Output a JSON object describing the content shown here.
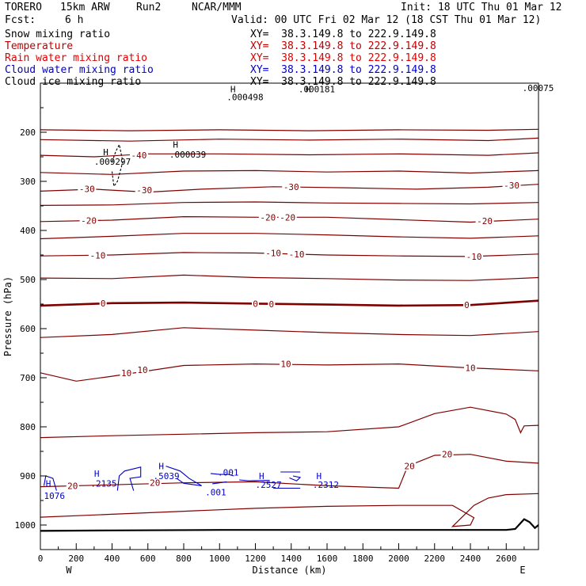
{
  "header": {
    "model": "TORERO",
    "resolution": "15km ARW",
    "run": "Run2",
    "center": "NCAR/MMM",
    "init": "Init: 18 UTC Thu 01 Mar 12",
    "fcst": "Fcst:",
    "fcst_value": "6 h",
    "valid": "Valid: 00 UTC Fri 02 Mar 12 (18 CST Thu 01 Mar 12)"
  },
  "colors": {
    "snow": "#000000",
    "temperature": "#c00000",
    "rain": "#e00000",
    "cloud_water": "#0000c8",
    "cloud_ice": "#000000",
    "temp_contour": "#800000",
    "hydrometeor": "#0000c8"
  },
  "legend": [
    {
      "label": "Snow mixing ratio",
      "xy": "XY=  38.3.149.8 to 222.9.149.8",
      "color_key": "snow"
    },
    {
      "label": "Temperature",
      "xy": "XY=  38.3.149.8 to 222.9.149.8",
      "color_key": "temperature"
    },
    {
      "label": "Rain water mixing ratio",
      "xy": "XY=  38.3.149.8 to 222.9.149.8",
      "color_key": "rain"
    },
    {
      "label": "Cloud water mixing ratio",
      "xy": "XY=  38.3.149.8 to 222.9.149.8",
      "color_key": "cloud_water"
    },
    {
      "label": "Cloud ice mixing ratio",
      "xy": "XY=  38.3.149.8 to 222.9.149.8",
      "color_key": "cloud_ice"
    }
  ],
  "chart_data": {
    "type": "line",
    "subtype": "vertical cross-section contour",
    "xlabel": "Distance (km)",
    "ylabel": "Pressure (hPa)",
    "xlim": [
      0,
      2780
    ],
    "ylim": [
      1050,
      100
    ],
    "x_ticks": [
      0,
      200,
      400,
      600,
      800,
      1000,
      1200,
      1400,
      1600,
      1800,
      2000,
      2200,
      2400,
      2600
    ],
    "y_ticks": [
      200,
      300,
      400,
      500,
      600,
      700,
      800,
      900,
      1000
    ],
    "x_end_labels": {
      "left": "W",
      "right": "E"
    },
    "temperature_contours": [
      {
        "value": -50,
        "points": [
          [
            0,
            195
          ],
          [
            500,
            197
          ],
          [
            1000,
            195
          ],
          [
            1500,
            197
          ],
          [
            2000,
            195
          ],
          [
            2500,
            196
          ],
          [
            2780,
            194
          ]
        ]
      },
      {
        "value": -45,
        "points": [
          [
            0,
            215
          ],
          [
            500,
            218
          ],
          [
            1000,
            214
          ],
          [
            1500,
            216
          ],
          [
            2000,
            214
          ],
          [
            2500,
            217
          ],
          [
            2780,
            212
          ]
        ]
      },
      {
        "value": -40,
        "points": [
          [
            0,
            247
          ],
          [
            300,
            250
          ],
          [
            600,
            244
          ],
          [
            1000,
            244
          ],
          [
            1500,
            246
          ],
          [
            2000,
            244
          ],
          [
            2500,
            247
          ],
          [
            2780,
            242
          ]
        ]
      },
      {
        "value": -35,
        "points": [
          [
            0,
            282
          ],
          [
            400,
            286
          ],
          [
            800,
            279
          ],
          [
            1200,
            278
          ],
          [
            1600,
            281
          ],
          [
            2000,
            279
          ],
          [
            2400,
            283
          ],
          [
            2780,
            278
          ]
        ]
      },
      {
        "value": -30,
        "points": [
          [
            0,
            320
          ],
          [
            300,
            316
          ],
          [
            600,
            322
          ],
          [
            900,
            316
          ],
          [
            1300,
            311
          ],
          [
            1700,
            313
          ],
          [
            2100,
            316
          ],
          [
            2500,
            312
          ],
          [
            2780,
            306
          ]
        ]
      },
      {
        "value": -25,
        "points": [
          [
            0,
            349
          ],
          [
            400,
            348
          ],
          [
            800,
            343
          ],
          [
            1200,
            342
          ],
          [
            1600,
            344
          ],
          [
            2000,
            345
          ],
          [
            2400,
            346
          ],
          [
            2780,
            343
          ]
        ]
      },
      {
        "value": -20,
        "points": [
          [
            0,
            382
          ],
          [
            400,
            379
          ],
          [
            800,
            372
          ],
          [
            1200,
            373
          ],
          [
            1600,
            373
          ],
          [
            2000,
            378
          ],
          [
            2400,
            383
          ],
          [
            2780,
            377
          ]
        ]
      },
      {
        "value": -15,
        "points": [
          [
            0,
            417
          ],
          [
            400,
            412
          ],
          [
            800,
            406
          ],
          [
            1200,
            406
          ],
          [
            1600,
            409
          ],
          [
            2000,
            413
          ],
          [
            2400,
            416
          ],
          [
            2780,
            411
          ]
        ]
      },
      {
        "value": -10,
        "points": [
          [
            0,
            452
          ],
          [
            400,
            450
          ],
          [
            800,
            445
          ],
          [
            1200,
            446
          ],
          [
            1600,
            450
          ],
          [
            2000,
            452
          ],
          [
            2400,
            453
          ],
          [
            2780,
            448
          ]
        ]
      },
      {
        "value": -5,
        "points": [
          [
            0,
            497
          ],
          [
            400,
            498
          ],
          [
            800,
            491
          ],
          [
            1200,
            496
          ],
          [
            1600,
            498
          ],
          [
            2000,
            501
          ],
          [
            2400,
            502
          ],
          [
            2780,
            496
          ]
        ]
      },
      {
        "value": 0,
        "points": [
          [
            0,
            553
          ],
          [
            400,
            548
          ],
          [
            800,
            547
          ],
          [
            1200,
            549
          ],
          [
            1600,
            551
          ],
          [
            2000,
            553
          ],
          [
            2400,
            552
          ],
          [
            2780,
            543
          ]
        ]
      },
      {
        "value": 5,
        "points": [
          [
            0,
            618
          ],
          [
            400,
            612
          ],
          [
            800,
            598
          ],
          [
            1200,
            603
          ],
          [
            1600,
            608
          ],
          [
            2000,
            612
          ],
          [
            2400,
            614
          ],
          [
            2780,
            606
          ]
        ]
      },
      {
        "value": 10,
        "points": [
          [
            0,
            690
          ],
          [
            200,
            707
          ],
          [
            400,
            697
          ],
          [
            800,
            675
          ],
          [
            1200,
            672
          ],
          [
            1600,
            674
          ],
          [
            2000,
            672
          ],
          [
            2400,
            680
          ],
          [
            2780,
            686
          ]
        ]
      },
      {
        "value": 15,
        "points": [
          [
            0,
            822
          ],
          [
            400,
            818
          ],
          [
            800,
            815
          ],
          [
            1200,
            812
          ],
          [
            1600,
            810
          ],
          [
            2000,
            800
          ],
          [
            2200,
            773
          ],
          [
            2400,
            760
          ],
          [
            2600,
            774
          ],
          [
            2650,
            785
          ],
          [
            2680,
            812
          ],
          [
            2700,
            798
          ],
          [
            2780,
            797
          ]
        ]
      },
      {
        "value": 20,
        "points": [
          [
            0,
            922
          ],
          [
            400,
            918
          ],
          [
            800,
            914
          ],
          [
            1200,
            912
          ],
          [
            1600,
            920
          ],
          [
            2000,
            925
          ],
          [
            2050,
            880
          ],
          [
            2200,
            858
          ],
          [
            2400,
            856
          ],
          [
            2600,
            870
          ],
          [
            2780,
            874
          ]
        ]
      },
      {
        "value": 25,
        "points": [
          [
            0,
            984
          ],
          [
            400,
            978
          ],
          [
            800,
            972
          ],
          [
            1200,
            966
          ],
          [
            1600,
            962
          ],
          [
            2000,
            960
          ],
          [
            2300,
            960
          ],
          [
            2420,
            985
          ],
          [
            2400,
            1000
          ],
          [
            2300,
            1003
          ],
          [
            2420,
            960
          ],
          [
            2500,
            945
          ],
          [
            2600,
            938
          ],
          [
            2780,
            936
          ]
        ]
      }
    ],
    "temperature_labels": [
      {
        "text": "-40",
        "x": 550,
        "p": 247
      },
      {
        "text": "-30",
        "x": 260,
        "p": 315
      },
      {
        "text": "-30",
        "x": 580,
        "p": 318
      },
      {
        "text": "-30",
        "x": 1400,
        "p": 311
      },
      {
        "text": "-30",
        "x": 2630,
        "p": 308
      },
      {
        "text": "-20",
        "x": 270,
        "p": 380
      },
      {
        "text": "-20",
        "x": 1270,
        "p": 373
      },
      {
        "text": "-20",
        "x": 1380,
        "p": 373
      },
      {
        "text": "-20",
        "x": 2480,
        "p": 381
      },
      {
        "text": "-10",
        "x": 320,
        "p": 451
      },
      {
        "text": "-10",
        "x": 1300,
        "p": 446
      },
      {
        "text": "-10",
        "x": 1430,
        "p": 448
      },
      {
        "text": "-10",
        "x": 2420,
        "p": 453
      },
      {
        "text": "0",
        "x": 350,
        "p": 548
      },
      {
        "text": "0",
        "x": 1200,
        "p": 549
      },
      {
        "text": "0",
        "x": 1290,
        "p": 550
      },
      {
        "text": "0",
        "x": 2380,
        "p": 552
      },
      {
        "text": "10",
        "x": 480,
        "p": 690
      },
      {
        "text": "10",
        "x": 570,
        "p": 684
      },
      {
        "text": "10",
        "x": 1370,
        "p": 672
      },
      {
        "text": "10",
        "x": 2400,
        "p": 680
      },
      {
        "text": "20",
        "x": 180,
        "p": 920
      },
      {
        "text": "20",
        "x": 640,
        "p": 914
      },
      {
        "text": "20",
        "x": 2060,
        "p": 880
      },
      {
        "text": "20",
        "x": 2270,
        "p": 856
      }
    ],
    "hydrometeor_contours": [
      {
        "kind": "cloud_water",
        "points": [
          [
            20,
            920
          ],
          [
            30,
            900
          ],
          [
            70,
            905
          ],
          [
            90,
            930
          ]
        ]
      },
      {
        "kind": "cloud_water",
        "points": [
          [
            430,
            930
          ],
          [
            440,
            900
          ],
          [
            470,
            890
          ],
          [
            560,
            882
          ],
          [
            560,
            902
          ],
          [
            500,
            905
          ],
          [
            520,
            930
          ]
        ]
      },
      {
        "kind": "cloud_water",
        "points": [
          [
            700,
            880
          ],
          [
            780,
            890
          ],
          [
            830,
            905
          ],
          [
            900,
            920
          ],
          [
            800,
            915
          ],
          [
            760,
            905
          ]
        ]
      },
      {
        "kind": "cloud_water",
        "points": [
          [
            950,
            895
          ],
          [
            1000,
            897
          ],
          [
            1050,
            897
          ],
          [
            1080,
            900
          ]
        ]
      },
      {
        "kind": "cloud_water",
        "points": [
          [
            960,
            916
          ],
          [
            1000,
            914
          ],
          [
            1040,
            912
          ]
        ]
      },
      {
        "kind": "cloud_water",
        "points": [
          [
            1110,
            908
          ],
          [
            1160,
            910
          ],
          [
            1280,
            909
          ]
        ]
      },
      {
        "kind": "cloud_water",
        "points": [
          [
            1340,
            892
          ],
          [
            1450,
            892
          ]
        ]
      },
      {
        "kind": "cloud_water",
        "points": [
          [
            1390,
            904
          ],
          [
            1430,
            910
          ],
          [
            1450,
            903
          ],
          [
            1410,
            900
          ]
        ]
      },
      {
        "kind": "cloud_water",
        "points": [
          [
            1300,
            925
          ],
          [
            1450,
            925
          ]
        ]
      },
      {
        "kind": "cloud_ice",
        "points": [
          [
            400,
            260
          ],
          [
            420,
            240
          ],
          [
            440,
            225
          ],
          [
            460,
            260
          ],
          [
            430,
            300
          ],
          [
            410,
            310
          ],
          [
            400,
            280
          ]
        ]
      }
    ],
    "extrema_labels": [
      {
        "text": "H",
        "x": 30,
        "p": 915
      },
      {
        "text": "1076",
        "x": 20,
        "p": 940
      },
      {
        "text": "H",
        "x": 300,
        "p": 895
      },
      {
        "text": ".2135",
        "x": 280,
        "p": 915
      },
      {
        "text": "H",
        "x": 660,
        "p": 880
      },
      {
        "text": ".5039",
        "x": 630,
        "p": 900
      },
      {
        "text": ".001",
        "x": 990,
        "p": 893
      },
      {
        "text": ".001",
        "x": 920,
        "p": 933
      },
      {
        "text": "H",
        "x": 1220,
        "p": 900
      },
      {
        "text": ".2527",
        "x": 1200,
        "p": 918
      },
      {
        "text": "H",
        "x": 1540,
        "p": 900
      },
      {
        "text": ".2312",
        "x": 1520,
        "p": 918
      },
      {
        "text": "H",
        "x": 350,
        "p": 240
      },
      {
        "text": ".009297",
        "x": 300,
        "p": 260
      },
      {
        "text": "H",
        "x": 740,
        "p": 225
      },
      {
        "text": ".000039",
        "x": 720,
        "p": 245
      },
      {
        "text": "H",
        "x": 1060,
        "p": 112
      },
      {
        "text": ".000498",
        "x": 1040,
        "p": 128
      },
      {
        "text": "H",
        "x": 1480,
        "p": 112
      },
      {
        "text": ".000181",
        "x": 1440,
        "p": 112
      },
      {
        "text": ".00075",
        "x": 2690,
        "p": 110
      }
    ],
    "ground": [
      [
        0,
        1012
      ],
      [
        400,
        1011
      ],
      [
        1000,
        1010
      ],
      [
        1600,
        1010
      ],
      [
        2200,
        1010
      ],
      [
        2600,
        1010
      ],
      [
        2650,
        1008
      ],
      [
        2700,
        988
      ],
      [
        2730,
        994
      ],
      [
        2760,
        1006
      ],
      [
        2780,
        1000
      ]
    ]
  }
}
